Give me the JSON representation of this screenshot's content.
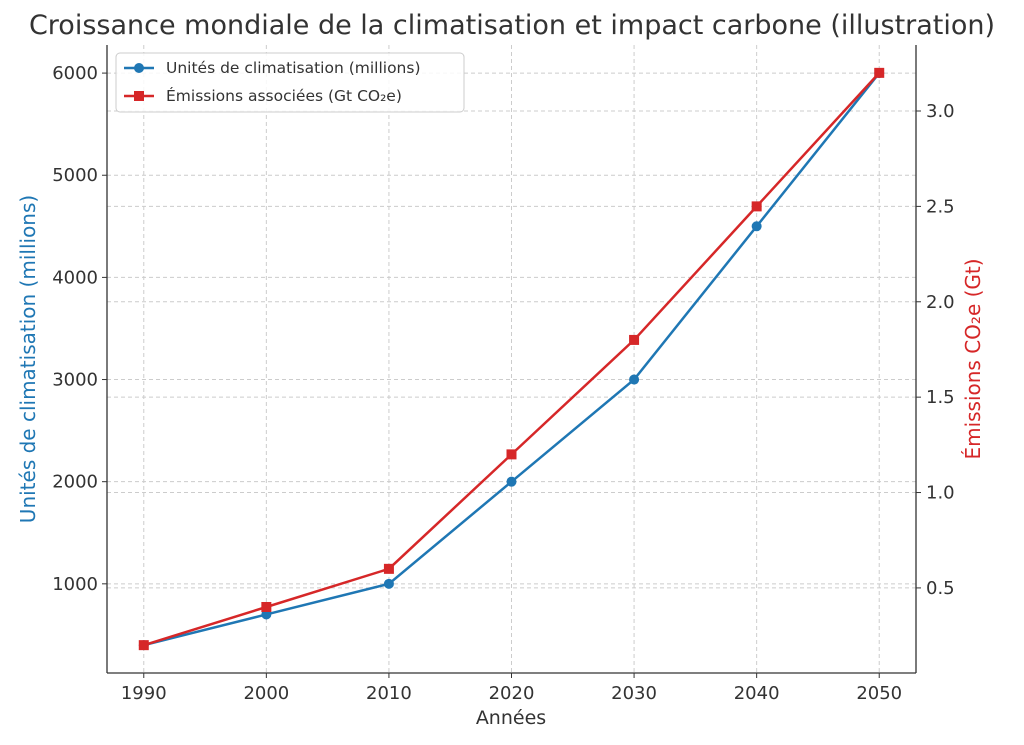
{
  "chart_data": {
    "type": "line",
    "title": "Croissance mondiale de la climatisation et impact carbone (illustration)",
    "xlabel": "Années",
    "ylabel": "Unités de climatisation (millions)",
    "y2label": "Émissions CO₂e (Gt)",
    "x": [
      1990,
      2000,
      2010,
      2020,
      2030,
      2040,
      2050
    ],
    "xlim": [
      1987,
      2053
    ],
    "ylim": [
      127,
      6275
    ],
    "y2lim": [
      0.054,
      3.346
    ],
    "xticks": [
      "1990",
      "2000",
      "2010",
      "2020",
      "2030",
      "2040",
      "2050"
    ],
    "yticks": [
      "1000",
      "2000",
      "3000",
      "4000",
      "5000",
      "6000"
    ],
    "y2ticks": [
      "0.5",
      "1.0",
      "1.5",
      "2.0",
      "2.5",
      "3.0"
    ],
    "grid": true,
    "legend_position": "top-left",
    "series": [
      {
        "name": "Unités de climatisation (millions)",
        "axis": "left",
        "marker": "circle",
        "color": "#1f77b4",
        "values": [
          400,
          700,
          1000,
          2000,
          3000,
          4500,
          6000
        ]
      },
      {
        "name": "Émissions associées (Gt CO₂e)",
        "axis": "right",
        "marker": "square",
        "color": "#d62728",
        "values": [
          0.2,
          0.4,
          0.6,
          1.2,
          1.8,
          2.5,
          3.2
        ]
      }
    ]
  }
}
